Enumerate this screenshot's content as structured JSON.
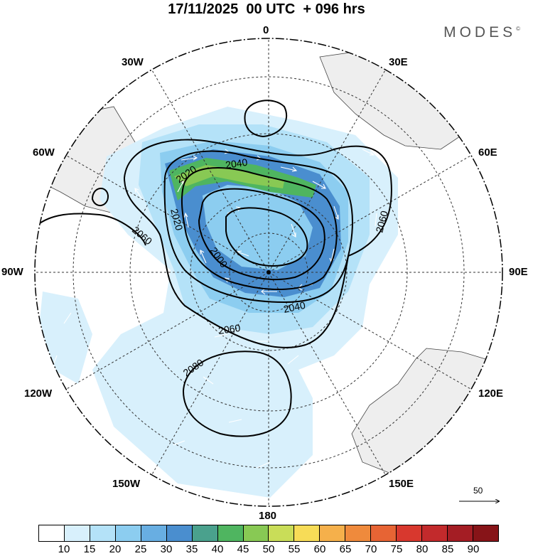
{
  "title": "17/11/2025  00 UTC  + 096 hrs",
  "brand": {
    "text": "MODES",
    "mark": "©"
  },
  "longitude_labels": [
    "0",
    "30E",
    "60E",
    "90E",
    "120E",
    "150E",
    "180",
    "150W",
    "120W",
    "90W",
    "60W",
    "30W"
  ],
  "contour_labels": [
    "2040",
    "2020",
    "2060",
    "2020",
    "2000",
    "2060",
    "2040",
    "2060",
    "2080"
  ],
  "colorbar": {
    "ticks": [
      "10",
      "15",
      "20",
      "25",
      "30",
      "35",
      "40",
      "45",
      "50",
      "55",
      "60",
      "65",
      "70",
      "75",
      "80",
      "85",
      "90"
    ],
    "colors": [
      "#ffffff",
      "#d8f0fc",
      "#b4e2f8",
      "#8ccdf0",
      "#68aee2",
      "#4a8ecf",
      "#4aa18d",
      "#4fb560",
      "#88c954",
      "#c9dd58",
      "#f7dc57",
      "#f5b04b",
      "#ef8a3c",
      "#e76434",
      "#d8382e",
      "#c22a2c",
      "#a41d24",
      "#871418"
    ]
  },
  "reference_vector": {
    "value": "50"
  },
  "colors": {
    "land": "#eeeeee",
    "coast": "#444444",
    "grid": "#333333"
  }
}
